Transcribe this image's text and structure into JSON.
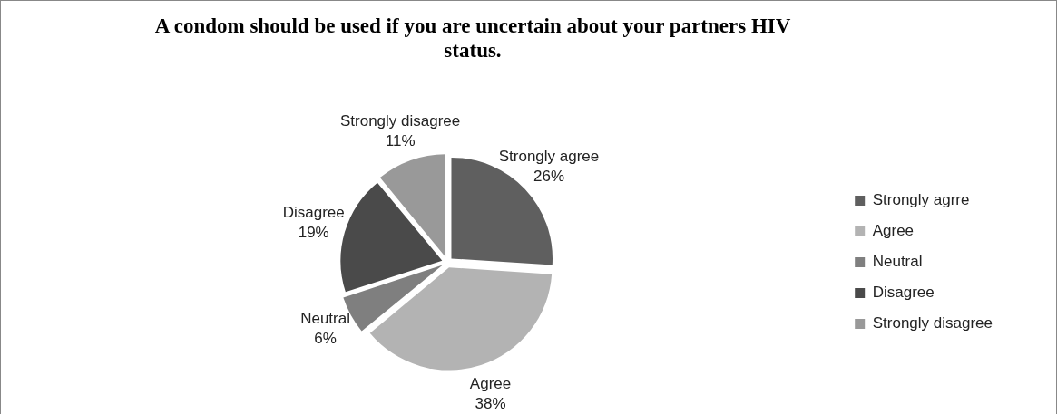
{
  "chart_data": {
    "type": "pie",
    "title": "A condom should be used if you are uncertain about your partners HIV status.",
    "categories": [
      "Strongly agrre",
      "Agree",
      "Neutral",
      "Disagree",
      "Strongly disagree"
    ],
    "values": [
      26,
      38,
      6,
      19,
      11
    ],
    "colors": [
      "#5f5f5f",
      "#b3b3b3",
      "#7f7f7f",
      "#4a4a4a",
      "#999999"
    ],
    "value_labels": [
      "Strongly agree\n26%",
      "Agree\n38%",
      "Neutral\n6%",
      "Disagree\n19%",
      "Strongly disagree\n11%"
    ],
    "legend": "right"
  }
}
